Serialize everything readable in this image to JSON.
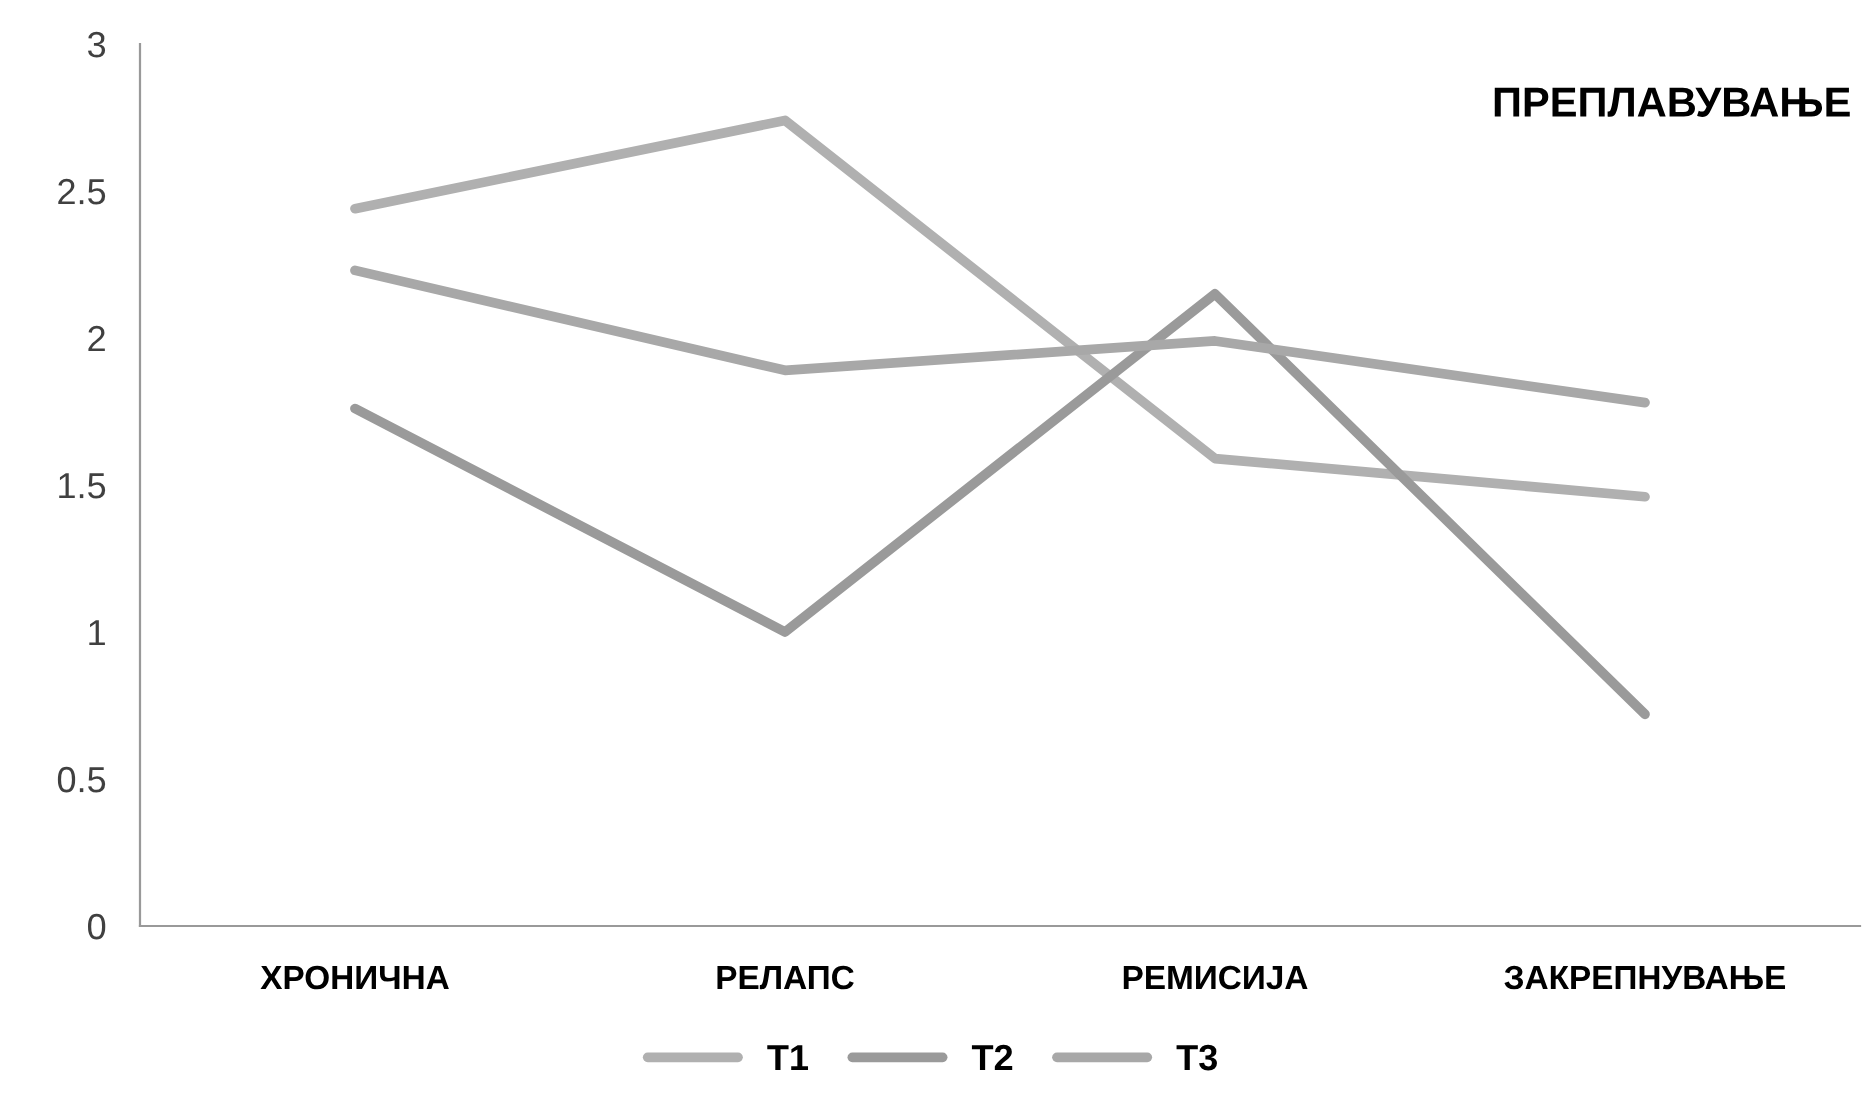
{
  "chart_data": {
    "type": "line",
    "title": "ПРЕПЛАВУВАЊЕ",
    "categories": [
      "ХРОНИЧНА",
      "РЕЛАПС",
      "РЕМИСИЈА",
      "ЗАКРЕПНУВАЊЕ"
    ],
    "series": [
      {
        "name": "T1",
        "color": "#b0b0b0",
        "values": [
          2.44,
          2.74,
          1.59,
          1.46
        ]
      },
      {
        "name": "T2",
        "color": "#9a9a9a",
        "values": [
          1.76,
          1.0,
          2.15,
          0.72
        ]
      },
      {
        "name": "T3",
        "color": "#a8a8a8",
        "values": [
          2.23,
          1.89,
          1.99,
          1.78
        ]
      }
    ],
    "ylim": [
      0,
      3
    ],
    "yticks": [
      0,
      0.5,
      1,
      1.5,
      2,
      2.5,
      3
    ],
    "grid": false,
    "legend": "bottom",
    "marker": "none",
    "line_style": "solid"
  }
}
